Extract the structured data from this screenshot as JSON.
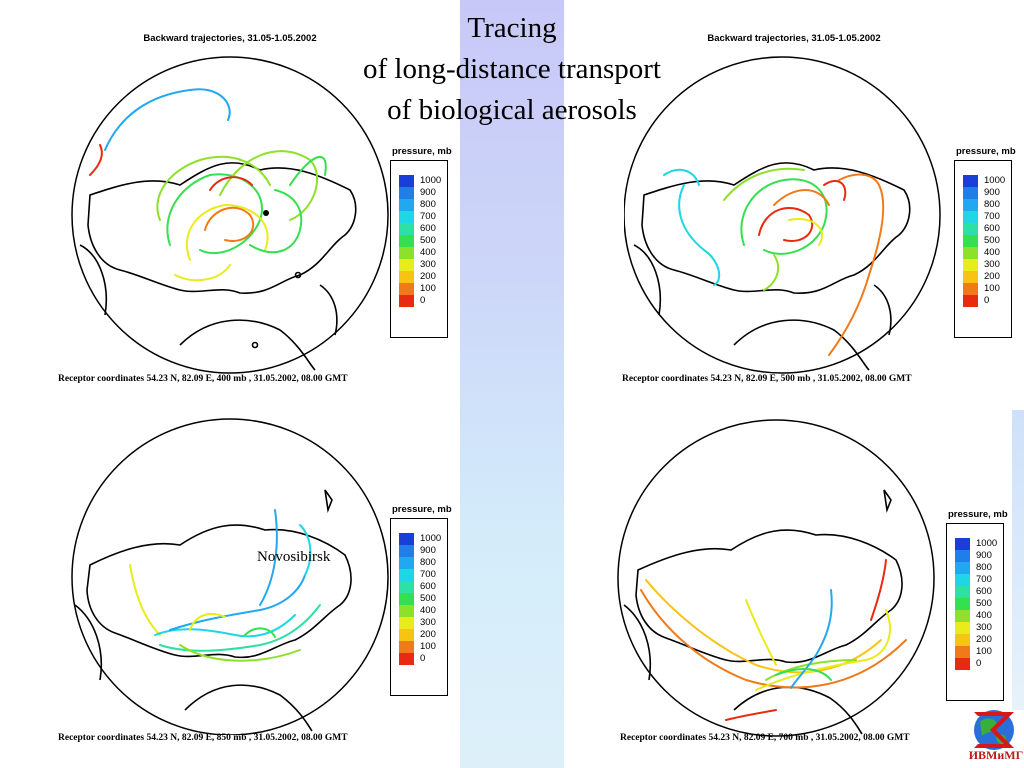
{
  "title": {
    "line1": "Tracing",
    "line2": "of long-distance transport",
    "line3": "of biological aerosols"
  },
  "panels": [
    {
      "title": "Backward trajectories, 31.05-1.05.2002",
      "legend_title": "pressure, mb",
      "caption": "Receptor  coordinates 54.23 N, 82.09 E, 400 mb , 31.05.2002,  08.00  GMT"
    },
    {
      "title": "Backward trajectories, 31.05-1.05.2002",
      "legend_title": "pressure, mb",
      "caption": "Receptor  coordinates 54.23 N, 82.09 E, 500 mb , 31.05.2002,  08.00  GMT"
    },
    {
      "title": "",
      "legend_title": "pressure, mb",
      "caption": "Receptor  coordinates 54.23 N, 82.09 E, 850 mb , 31.05.2002,  08.00  GMT",
      "annotation": "Novosibirsk"
    },
    {
      "title": "",
      "legend_title": "pressure, mb",
      "caption": "Receptor  coordinates 54.23 N, 82.09 E, 700 mb , 31.05.2002,  08.00  GMT"
    }
  ],
  "legend": {
    "labels": [
      "1000",
      "900",
      "800",
      "700",
      "600",
      "500",
      "400",
      "300",
      "200",
      "100",
      "0"
    ],
    "colors": [
      "#1a3fd8",
      "#1f7ee8",
      "#22a8f0",
      "#1ed6e6",
      "#2ee0a6",
      "#35e050",
      "#8ee02a",
      "#e8ec1a",
      "#f8c414",
      "#f07a1a",
      "#e82a10"
    ]
  },
  "logo": {
    "text": "ИВМиМГ"
  }
}
